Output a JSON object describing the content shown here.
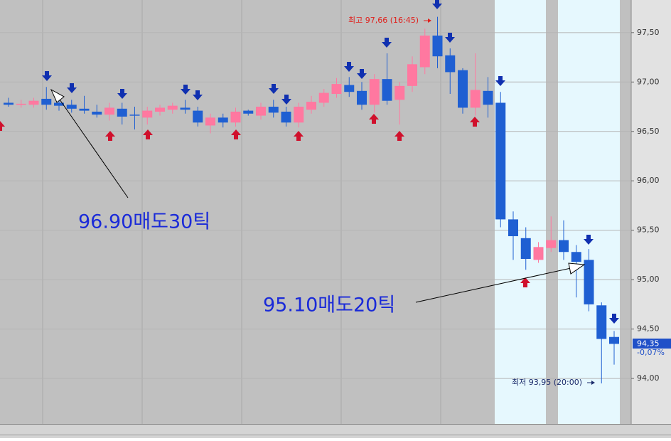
{
  "chart_data": {
    "type": "candlestick",
    "open": [
      96.79,
      96.77,
      96.77,
      96.83,
      96.79,
      96.77,
      96.73,
      96.7,
      96.67,
      96.73,
      96.67,
      96.64,
      96.7,
      96.72,
      96.74,
      96.71,
      96.56,
      96.64,
      96.59,
      96.71,
      96.66,
      96.75,
      96.7,
      96.59,
      96.72,
      96.79,
      96.88,
      96.97,
      96.91,
      96.77,
      97.03,
      96.82,
      96.96,
      97.15,
      97.47,
      97.27,
      97.12,
      96.74,
      96.91,
      96.79,
      95.61,
      95.42,
      95.2,
      95.32,
      95.4,
      95.28,
      95.2,
      94.74,
      94.42
    ],
    "high": [
      96.84,
      96.82,
      96.84,
      96.95,
      96.84,
      96.82,
      96.86,
      96.77,
      96.79,
      96.79,
      96.75,
      96.75,
      96.77,
      96.79,
      96.82,
      96.75,
      96.68,
      96.68,
      96.74,
      96.72,
      96.79,
      96.82,
      96.75,
      96.79,
      96.86,
      96.93,
      97.04,
      97.05,
      97.0,
      97.08,
      97.29,
      97.0,
      97.26,
      97.54,
      97.66,
      97.34,
      97.14,
      97.29,
      97.05,
      96.9,
      95.69,
      95.53,
      95.38,
      95.64,
      95.6,
      95.35,
      95.31,
      94.77,
      94.48
    ],
    "low": [
      96.75,
      96.74,
      96.74,
      96.72,
      96.71,
      96.69,
      96.68,
      96.64,
      96.61,
      96.57,
      96.52,
      96.57,
      96.66,
      96.68,
      96.68,
      96.55,
      96.48,
      96.54,
      96.55,
      96.66,
      96.62,
      96.64,
      96.55,
      96.54,
      96.68,
      96.75,
      96.84,
      96.85,
      96.72,
      96.69,
      96.77,
      96.57,
      96.9,
      97.08,
      97.14,
      96.88,
      96.68,
      96.66,
      96.64,
      95.53,
      95.2,
      95.1,
      95.17,
      95.28,
      95.2,
      94.82,
      94.68,
      93.95,
      94.14
    ],
    "close": [
      96.77,
      96.78,
      96.81,
      96.77,
      96.76,
      96.73,
      96.71,
      96.67,
      96.74,
      96.65,
      96.66,
      96.71,
      96.74,
      96.76,
      96.72,
      96.59,
      96.64,
      96.59,
      96.7,
      96.68,
      96.75,
      96.69,
      96.59,
      96.75,
      96.8,
      96.89,
      96.98,
      96.9,
      96.77,
      97.03,
      96.81,
      96.96,
      97.18,
      97.47,
      97.26,
      97.1,
      96.74,
      96.92,
      96.77,
      95.61,
      95.44,
      95.21,
      95.33,
      95.4,
      95.28,
      95.18,
      94.75,
      94.4,
      94.35
    ],
    "up_color": "#ff78a0",
    "down_color": "#1f5fd2",
    "ylim": [
      93.54,
      97.83
    ],
    "yticks": [
      {
        "value": 94.0,
        "label": "94,00"
      },
      {
        "value": 94.5,
        "label": "94,50"
      },
      {
        "value": 95.0,
        "label": "95,00"
      },
      {
        "value": 95.5,
        "label": "95,50"
      },
      {
        "value": 96.0,
        "label": "96,00"
      },
      {
        "value": 96.5,
        "label": "96,50"
      },
      {
        "value": 97.0,
        "label": "97,00"
      },
      {
        "value": 97.5,
        "label": "97,50"
      }
    ],
    "grid": true,
    "annotations": {
      "high_label": "최고 97,66 (16:45)",
      "low_label": "최저 93,95 (20:00)",
      "note_1": "96.90매도30틱",
      "note_2": "95.10매도20틱"
    },
    "last_price_label": "94,35",
    "change_label": "-0,07%"
  }
}
